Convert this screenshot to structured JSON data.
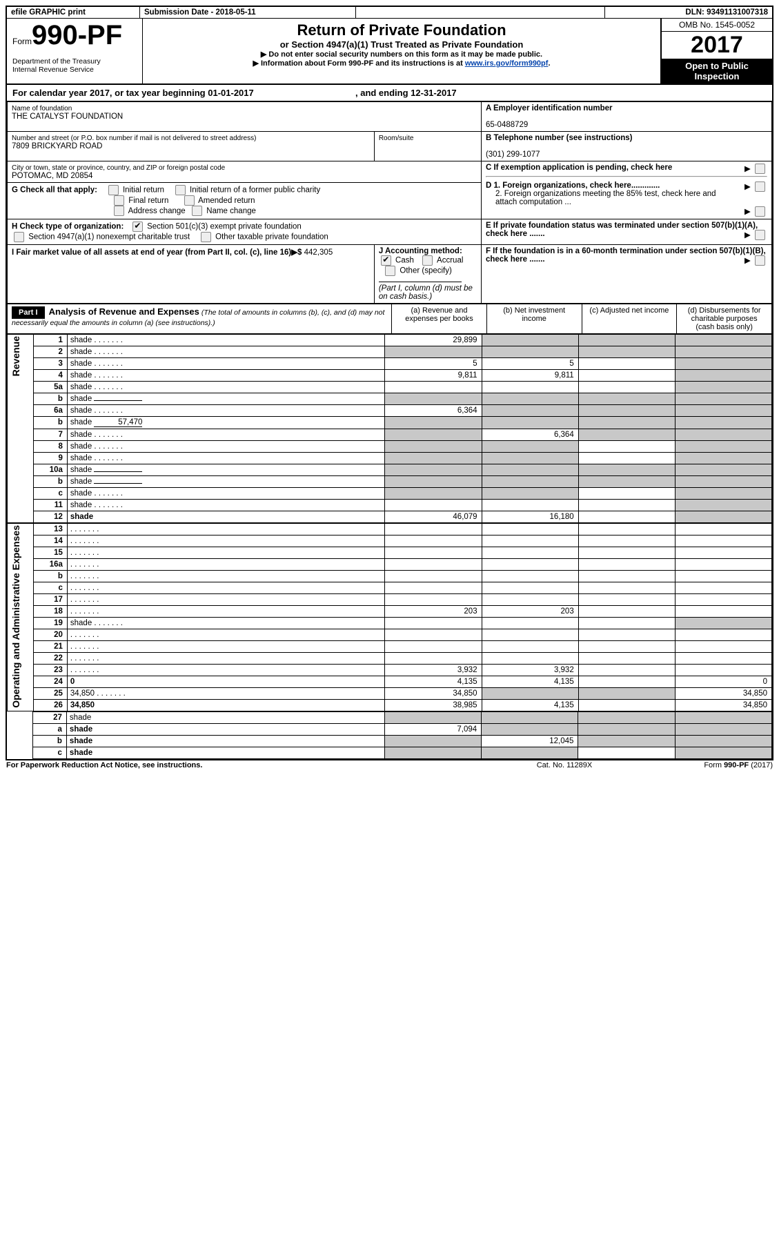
{
  "top": {
    "efile": "efile GRAPHIC print",
    "submission": "Submission Date - 2018-05-11",
    "dln": "DLN: 93491131007318"
  },
  "header": {
    "form_prefix": "Form",
    "form_number": "990-PF",
    "dept1": "Department of the Treasury",
    "dept2": "Internal Revenue Service",
    "title": "Return of Private Foundation",
    "subtitle": "or Section 4947(a)(1) Trust Treated as Private Foundation",
    "arrow1": "▶ Do not enter social security numbers on this form as it may be made public.",
    "arrow2_pre": "▶ Information about Form 990-PF and its instructions is at ",
    "arrow2_link": "www.irs.gov/form990pf",
    "arrow2_post": ".",
    "omb": "OMB No. 1545-0052",
    "year": "2017",
    "otp1": "Open to Public",
    "otp2": "Inspection"
  },
  "cal": {
    "line_pre": "For calendar year 2017, or tax year beginning ",
    "begin": "01-01-2017",
    "mid": " , and ending ",
    "end": "12-31-2017"
  },
  "id": {
    "name_label": "Name of foundation",
    "name": "THE CATALYST FOUNDATION",
    "ein_label": "A Employer identification number",
    "ein": "65-0488729",
    "addr_label": "Number and street (or P.O. box number if mail is not delivered to street address)",
    "addr": "7809 BRICKYARD ROAD",
    "room_label": "Room/suite",
    "tel_label": "B Telephone number (see instructions)",
    "tel": "(301) 299-1077",
    "city_label": "City or town, state or province, country, and ZIP or foreign postal code",
    "city": "POTOMAC, MD  20854",
    "c_label": "C If exemption application is pending, check here",
    "g_label": "G Check all that apply:",
    "g_opts": [
      "Initial return",
      "Initial return of a former public charity",
      "Final return",
      "Amended return",
      "Address change",
      "Name change"
    ],
    "d1": "D 1. Foreign organizations, check here.............",
    "d2": "2. Foreign organizations meeting the 85% test, check here and attach computation ...",
    "e": "E  If private foundation status was terminated under section 507(b)(1)(A), check here .......",
    "h_label": "H Check type of organization:",
    "h1": "Section 501(c)(3) exempt private foundation",
    "h2": "Section 4947(a)(1) nonexempt charitable trust",
    "h3": "Other taxable private foundation",
    "f": "F  If the foundation is in a 60-month termination under section 507(b)(1)(B), check here .......",
    "i_label": "I Fair market value of all assets at end of year (from Part II, col. (c), line 16)▶$",
    "i_val": "442,305",
    "j_label": "J Accounting method:",
    "j_cash": "Cash",
    "j_accrual": "Accrual",
    "j_other": "Other (specify)",
    "j_note": "(Part I, column (d) must be on cash basis.)"
  },
  "part1": {
    "label": "Part I",
    "title": "Analysis of Revenue and Expenses",
    "title_note": "(The total of amounts in columns (b), (c), and (d) may not necessarily equal the amounts in column (a) (see instructions).)",
    "col_a": "(a)   Revenue and expenses per books",
    "col_b": "(b)  Net investment income",
    "col_c": "(c)  Adjusted net income",
    "col_d": "(d)  Disbursements for charitable purposes (cash basis only)"
  },
  "sections": {
    "revenue": "Revenue",
    "opex": "Operating and Administrative Expenses"
  },
  "lines": [
    {
      "n": "1",
      "d": "shade",
      "a": "29,899",
      "b": "shade",
      "c": "shade"
    },
    {
      "n": "2",
      "d": "shade",
      "a": "shade",
      "b": "shade",
      "c": "shade",
      "dotted": true
    },
    {
      "n": "3",
      "d": "shade",
      "a": "5",
      "b": "5",
      "c": ""
    },
    {
      "n": "4",
      "d": "shade",
      "a": "9,811",
      "b": "9,811",
      "c": ""
    },
    {
      "n": "5a",
      "d": "shade",
      "a": "",
      "b": "",
      "c": ""
    },
    {
      "n": "b",
      "d": "shade",
      "a": "shade",
      "b": "shade",
      "c": "shade",
      "inline": true
    },
    {
      "n": "6a",
      "d": "shade",
      "a": "6,364",
      "b": "shade",
      "c": "shade"
    },
    {
      "n": "b",
      "d": "shade",
      "a": "shade",
      "b": "shade",
      "c": "shade",
      "inline": true,
      "inline_val": "57,470"
    },
    {
      "n": "7",
      "d": "shade",
      "a": "shade",
      "b": "6,364",
      "c": "shade"
    },
    {
      "n": "8",
      "d": "shade",
      "a": "shade",
      "b": "shade",
      "c": ""
    },
    {
      "n": "9",
      "d": "shade",
      "a": "shade",
      "b": "shade",
      "c": ""
    },
    {
      "n": "10a",
      "d": "shade",
      "a": "shade",
      "b": "shade",
      "c": "shade",
      "inline": true
    },
    {
      "n": "b",
      "d": "shade",
      "a": "shade",
      "b": "shade",
      "c": "shade",
      "inline": true
    },
    {
      "n": "c",
      "d": "shade",
      "a": "shade",
      "b": "shade",
      "c": ""
    },
    {
      "n": "11",
      "d": "shade",
      "a": "",
      "b": "",
      "c": ""
    },
    {
      "n": "12",
      "d": "shade",
      "a": "46,079",
      "b": "16,180",
      "c": "",
      "bold": true
    }
  ],
  "oplines": [
    {
      "n": "13",
      "d": "",
      "a": "",
      "b": "",
      "c": ""
    },
    {
      "n": "14",
      "d": "",
      "a": "",
      "b": "",
      "c": ""
    },
    {
      "n": "15",
      "d": "",
      "a": "",
      "b": "",
      "c": ""
    },
    {
      "n": "16a",
      "d": "",
      "a": "",
      "b": "",
      "c": ""
    },
    {
      "n": "b",
      "d": "",
      "a": "",
      "b": "",
      "c": ""
    },
    {
      "n": "c",
      "d": "",
      "a": "",
      "b": "",
      "c": ""
    },
    {
      "n": "17",
      "d": "",
      "a": "",
      "b": "",
      "c": ""
    },
    {
      "n": "18",
      "d": "",
      "a": "203",
      "b": "203",
      "c": ""
    },
    {
      "n": "19",
      "d": "shade",
      "a": "",
      "b": "",
      "c": ""
    },
    {
      "n": "20",
      "d": "",
      "a": "",
      "b": "",
      "c": ""
    },
    {
      "n": "21",
      "d": "",
      "a": "",
      "b": "",
      "c": ""
    },
    {
      "n": "22",
      "d": "",
      "a": "",
      "b": "",
      "c": ""
    },
    {
      "n": "23",
      "d": "",
      "a": "3,932",
      "b": "3,932",
      "c": ""
    },
    {
      "n": "24",
      "d": "0",
      "a": "4,135",
      "b": "4,135",
      "c": "",
      "bold": true
    },
    {
      "n": "25",
      "d": "34,850",
      "a": "34,850",
      "b": "shade",
      "c": "shade"
    },
    {
      "n": "26",
      "d": "34,850",
      "a": "38,985",
      "b": "4,135",
      "c": "",
      "bold": true
    }
  ],
  "bottom": [
    {
      "n": "27",
      "d": "shade",
      "a": "shade",
      "b": "shade",
      "c": "shade"
    },
    {
      "n": "a",
      "d": "shade",
      "a": "7,094",
      "b": "shade",
      "c": "shade",
      "bold": true
    },
    {
      "n": "b",
      "d": "shade",
      "a": "shade",
      "b": "12,045",
      "c": "shade",
      "bold": true
    },
    {
      "n": "c",
      "d": "shade",
      "a": "shade",
      "b": "shade",
      "c": "",
      "bold": true
    }
  ],
  "footer": {
    "left": "For Paperwork Reduction Act Notice, see instructions.",
    "mid": "Cat. No. 11289X",
    "right": "Form 990-PF (2017)"
  }
}
